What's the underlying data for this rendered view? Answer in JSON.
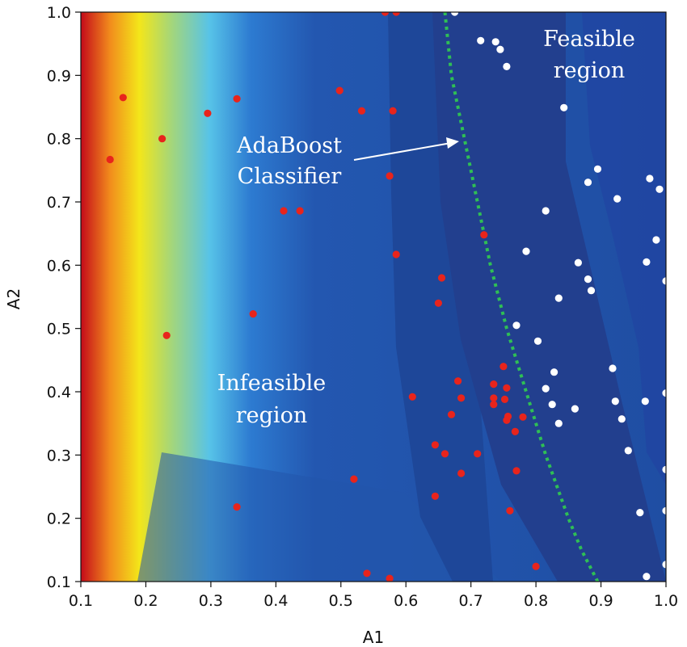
{
  "chart_data": {
    "type": "scatter",
    "xlabel": "A1",
    "ylabel": "A2",
    "xlim": [
      0.1,
      1.0
    ],
    "ylim": [
      0.1,
      1.0
    ],
    "x_ticks": [
      "0.1",
      "0.2",
      "0.3",
      "0.4",
      "0.5",
      "0.6",
      "0.7",
      "0.8",
      "0.9",
      "1.0"
    ],
    "y_ticks": [
      "0.1",
      "0.2",
      "0.3",
      "0.4",
      "0.5",
      "0.6",
      "0.7",
      "0.8",
      "0.9",
      "1.0"
    ],
    "background": "filled contour heatmap (blue to red)",
    "annotations": {
      "feasible": [
        "Feasible",
        "region"
      ],
      "classifier": [
        "AdaBoost",
        "Classifier"
      ],
      "infeasible": [
        "Infeasible",
        "region"
      ]
    },
    "boundary": {
      "name": "AdaBoost Classifier",
      "style": "dotted",
      "points": [
        [
          0.66,
          1.0
        ],
        [
          0.67,
          0.9
        ],
        [
          0.69,
          0.8
        ],
        [
          0.71,
          0.7
        ],
        [
          0.73,
          0.6
        ],
        [
          0.755,
          0.5
        ],
        [
          0.785,
          0.4
        ],
        [
          0.815,
          0.3
        ],
        [
          0.85,
          0.2
        ],
        [
          0.87,
          0.15
        ],
        [
          0.895,
          0.1
        ]
      ]
    },
    "series": [
      {
        "color": "#e8241c",
        "points": [
          [
            0.165,
            0.865
          ],
          [
            0.145,
            0.767
          ],
          [
            0.225,
            0.8
          ],
          [
            0.295,
            0.84
          ],
          [
            0.34,
            0.863
          ],
          [
            0.412,
            0.686
          ],
          [
            0.437,
            0.686
          ],
          [
            0.365,
            0.523
          ],
          [
            0.232,
            0.489
          ],
          [
            0.34,
            0.218
          ],
          [
            0.498,
            0.876
          ],
          [
            0.532,
            0.844
          ],
          [
            0.58,
            0.844
          ],
          [
            0.575,
            0.741
          ],
          [
            0.585,
            0.617
          ],
          [
            0.568,
            1.0
          ],
          [
            0.585,
            1.0
          ],
          [
            0.72,
            0.648
          ],
          [
            0.655,
            0.58
          ],
          [
            0.65,
            0.54
          ],
          [
            0.61,
            0.392
          ],
          [
            0.68,
            0.417
          ],
          [
            0.685,
            0.39
          ],
          [
            0.67,
            0.364
          ],
          [
            0.645,
            0.316
          ],
          [
            0.66,
            0.302
          ],
          [
            0.71,
            0.302
          ],
          [
            0.685,
            0.271
          ],
          [
            0.645,
            0.235
          ],
          [
            0.52,
            0.262
          ],
          [
            0.54,
            0.113
          ],
          [
            0.575,
            0.105
          ],
          [
            0.735,
            0.412
          ],
          [
            0.735,
            0.39
          ],
          [
            0.735,
            0.38
          ],
          [
            0.75,
            0.44
          ],
          [
            0.755,
            0.406
          ],
          [
            0.752,
            0.388
          ],
          [
            0.757,
            0.361
          ],
          [
            0.755,
            0.355
          ],
          [
            0.768,
            0.337
          ],
          [
            0.78,
            0.36
          ],
          [
            0.77,
            0.275
          ],
          [
            0.76,
            0.212
          ],
          [
            0.8,
            0.124
          ]
        ]
      },
      {
        "color": "#ffffff",
        "points": [
          [
            0.675,
            1.0
          ],
          [
            0.715,
            0.955
          ],
          [
            0.738,
            0.953
          ],
          [
            0.745,
            0.941
          ],
          [
            0.755,
            0.914
          ],
          [
            0.843,
            0.849
          ],
          [
            0.895,
            0.752
          ],
          [
            0.88,
            0.731
          ],
          [
            0.925,
            0.705
          ],
          [
            0.975,
            0.737
          ],
          [
            0.99,
            0.72
          ],
          [
            0.815,
            0.686
          ],
          [
            0.985,
            0.64
          ],
          [
            0.785,
            0.622
          ],
          [
            0.865,
            0.604
          ],
          [
            0.97,
            0.605
          ],
          [
            0.88,
            0.578
          ],
          [
            0.885,
            0.56
          ],
          [
            1.0,
            0.575
          ],
          [
            0.835,
            0.548
          ],
          [
            0.77,
            0.505
          ],
          [
            0.803,
            0.48
          ],
          [
            0.828,
            0.431
          ],
          [
            0.815,
            0.405
          ],
          [
            0.825,
            0.38
          ],
          [
            0.835,
            0.35
          ],
          [
            0.86,
            0.373
          ],
          [
            0.918,
            0.437
          ],
          [
            0.922,
            0.385
          ],
          [
            0.932,
            0.357
          ],
          [
            0.968,
            0.385
          ],
          [
            0.942,
            0.307
          ],
          [
            1.0,
            0.398
          ],
          [
            1.0,
            0.277
          ],
          [
            0.96,
            0.209
          ],
          [
            1.0,
            0.212
          ],
          [
            0.97,
            0.108
          ],
          [
            1.0,
            0.127
          ]
        ]
      }
    ]
  }
}
